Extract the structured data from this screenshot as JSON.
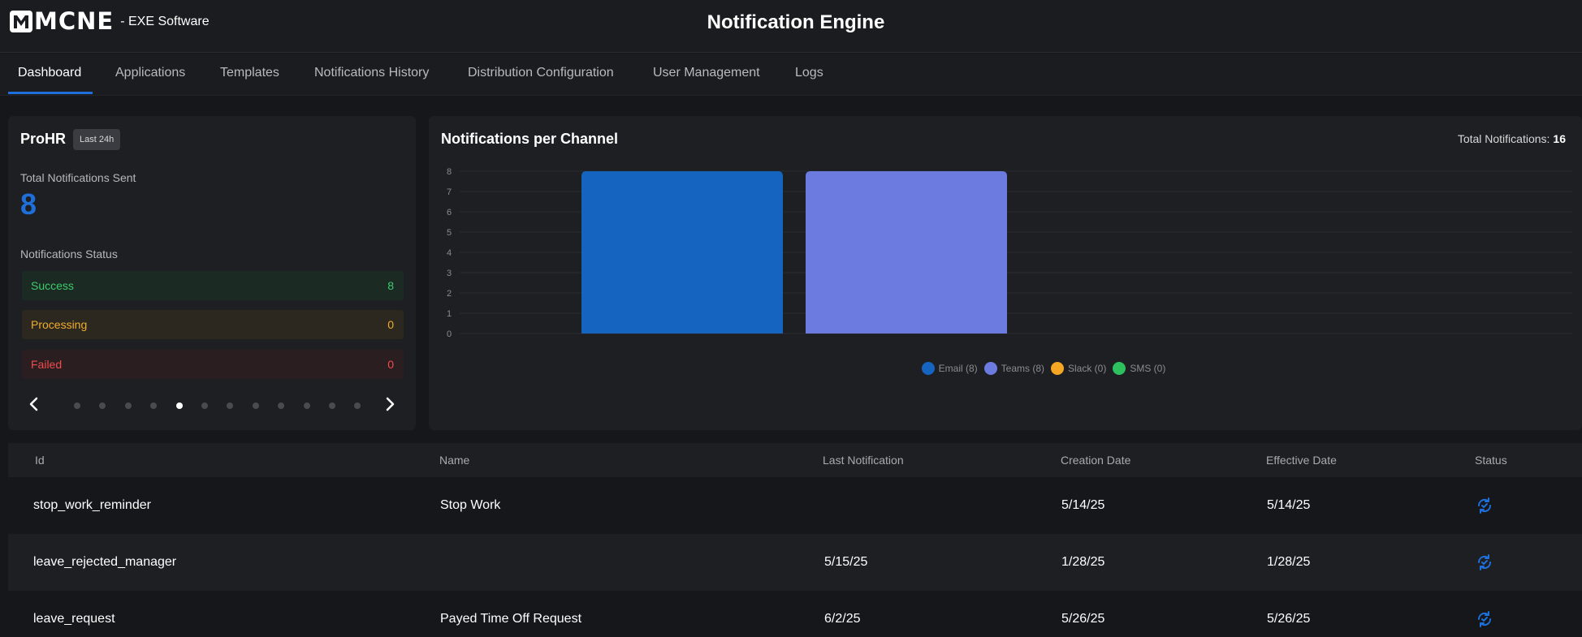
{
  "header": {
    "logo_text": "MCNE",
    "logo_subtitle": "- EXE Software",
    "title": "Notification Engine"
  },
  "tabs": [
    {
      "label": "Dashboard",
      "active": true
    },
    {
      "label": "Applications"
    },
    {
      "label": "Templates"
    },
    {
      "label": "Notifications History"
    },
    {
      "label": "Distribution Configuration"
    },
    {
      "label": "User Management"
    },
    {
      "label": "Logs"
    }
  ],
  "summary": {
    "app_name": "ProHR",
    "period_badge": "Last 24h",
    "total_label": "Total Notifications Sent",
    "total_value": "8",
    "status_heading": "Notifications Status",
    "statuses": [
      {
        "label": "Success",
        "value": "8",
        "color": "#3ccb6b"
      },
      {
        "label": "Processing",
        "value": "0",
        "color": "#f0ad2b"
      },
      {
        "label": "Failed",
        "value": "0",
        "color": "#f04c4c"
      }
    ],
    "carousel": {
      "page_count": 12,
      "active_index": 4
    }
  },
  "channel_chart": {
    "title": "Notifications per Channel",
    "total_label": "Total Notifications:",
    "total_value": "16",
    "legend": [
      "Email (8)",
      "Teams (8)",
      "Slack (0)",
      "SMS (0)"
    ]
  },
  "chart_data": {
    "type": "bar",
    "title": "Notifications per Channel",
    "categories": [
      "Email",
      "Teams",
      "Slack",
      "SMS"
    ],
    "values": [
      8,
      8,
      0,
      0
    ],
    "colors": [
      "#1565c0",
      "#6b7be0",
      "#f5a623",
      "#2ebf5e"
    ],
    "ylim": [
      0,
      8
    ],
    "yticks": [
      "0",
      "1",
      "2",
      "3",
      "4",
      "5",
      "6",
      "7",
      "8"
    ],
    "grid": true,
    "legend_position": "bottom-center"
  },
  "table": {
    "columns": [
      "Id",
      "Name",
      "Last Notification",
      "Creation Date",
      "Effective Date",
      "Status"
    ],
    "rows": [
      {
        "id": "stop_work_reminder",
        "name": "Stop Work",
        "last_notification": "",
        "creation_date": "5/14/25",
        "effective_date": "5/14/25",
        "status_icon": "sync-icon"
      },
      {
        "id": "leave_rejected_manager",
        "name": "",
        "last_notification": "5/15/25",
        "creation_date": "1/28/25",
        "effective_date": "1/28/25",
        "status_icon": "sync-icon"
      },
      {
        "id": "leave_request",
        "name": "Payed Time Off Request",
        "last_notification": "6/2/25",
        "creation_date": "5/26/25",
        "effective_date": "5/26/25",
        "status_icon": "sync-icon"
      }
    ]
  },
  "colors": {
    "accent": "#1e6fd9",
    "background": "#16171a",
    "card": "#1e1f23"
  }
}
